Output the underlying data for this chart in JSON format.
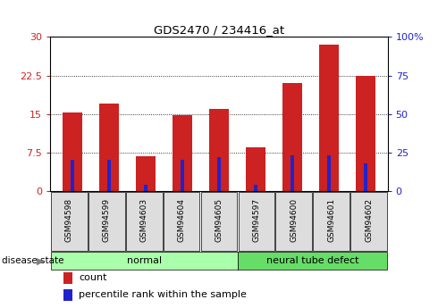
{
  "title": "GDS2470 / 234416_at",
  "samples": [
    "GSM94598",
    "GSM94599",
    "GSM94603",
    "GSM94604",
    "GSM94605",
    "GSM94597",
    "GSM94600",
    "GSM94601",
    "GSM94602"
  ],
  "count_values": [
    15.3,
    17.0,
    6.8,
    14.7,
    16.0,
    8.5,
    21.0,
    28.5,
    22.5
  ],
  "percentile_values": [
    20,
    20,
    4,
    20,
    22,
    4,
    23,
    23,
    18
  ],
  "groups": [
    {
      "label": "normal",
      "start": 0,
      "end": 4,
      "color": "#aaffaa"
    },
    {
      "label": "neural tube defect",
      "start": 5,
      "end": 8,
      "color": "#66dd66"
    }
  ],
  "left_ylim": [
    0,
    30
  ],
  "right_ylim": [
    0,
    100
  ],
  "left_yticks": [
    0,
    7.5,
    15,
    22.5,
    30
  ],
  "right_yticks": [
    0,
    25,
    50,
    75,
    100
  ],
  "left_yticklabels": [
    "0",
    "7.5",
    "15",
    "22.5",
    "30"
  ],
  "right_yticklabels": [
    "0",
    "25",
    "50",
    "75",
    "100%"
  ],
  "bar_color": "#CC2222",
  "percentile_color": "#2222CC",
  "bar_width": 0.55,
  "grid_color": "black",
  "background_color": "#ffffff",
  "plot_bg_color": "#ffffff",
  "tick_label_bg": "#dddddd",
  "disease_state_label": "disease state",
  "legend_count": "count",
  "legend_percentile": "percentile rank within the sample"
}
